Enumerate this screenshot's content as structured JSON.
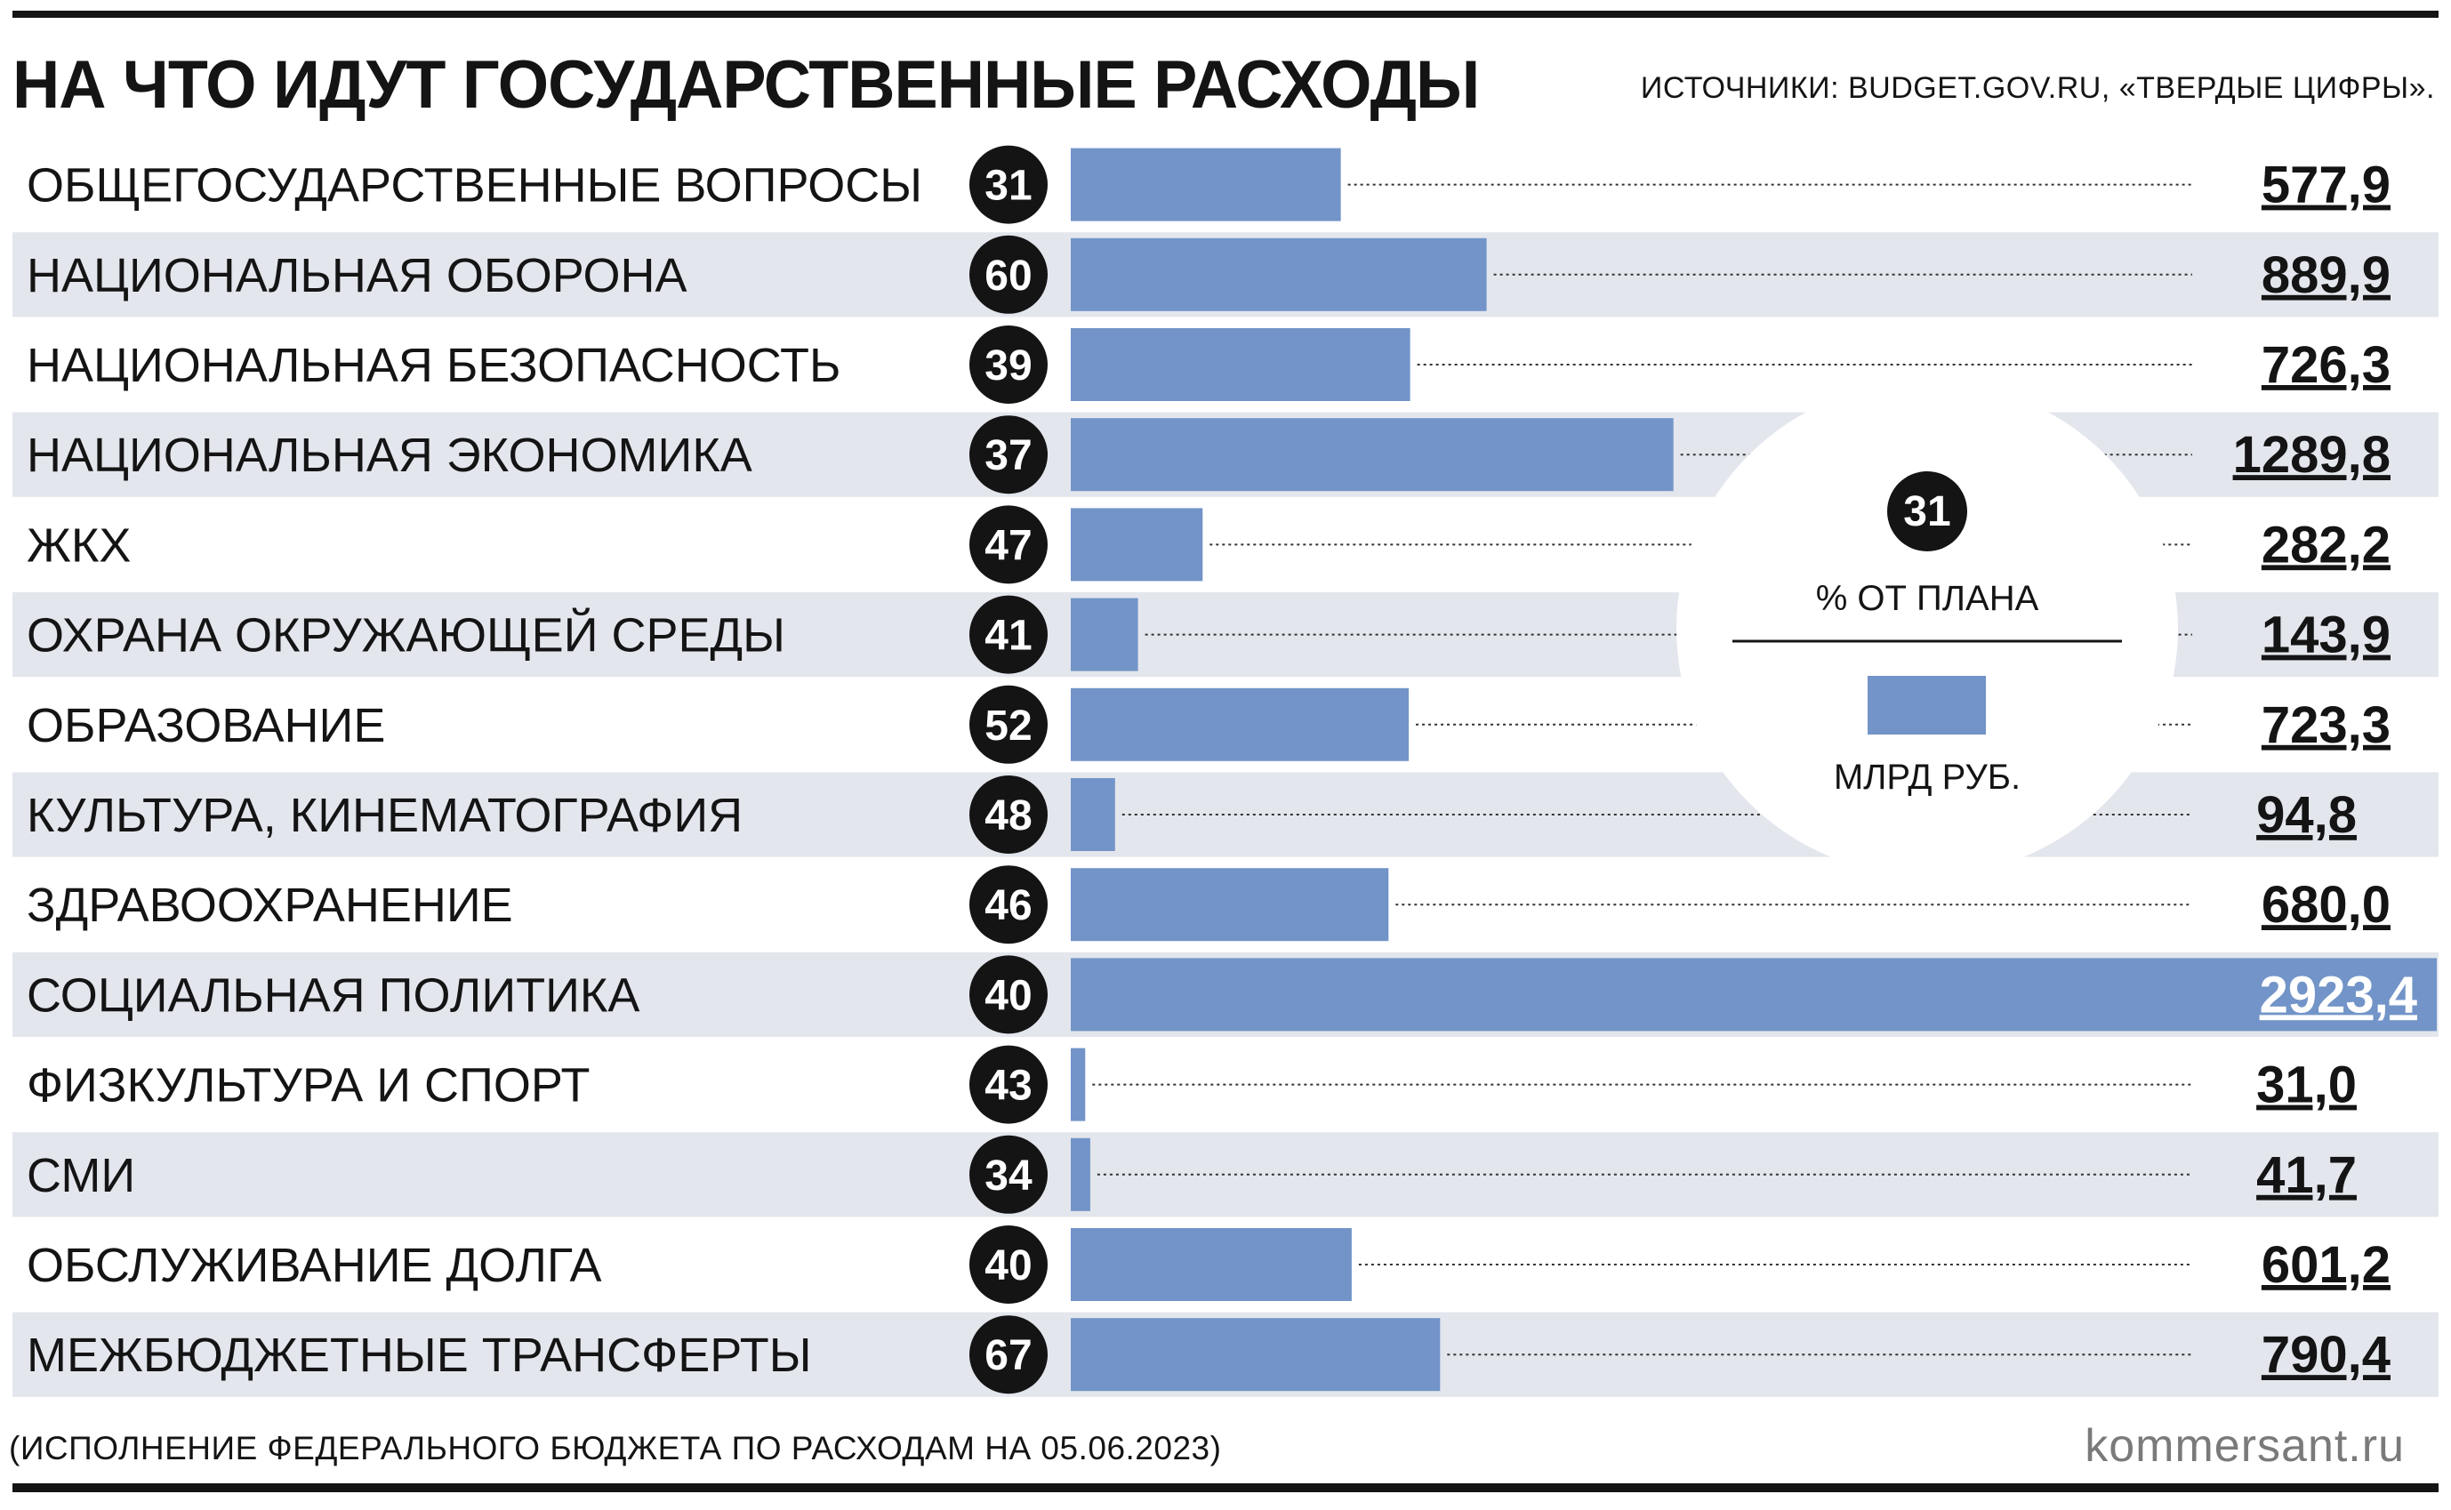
{
  "title": "НА ЧТО ИДУТ ГОСУДАРСТВЕННЫЕ РАСХОДЫ",
  "sources": "ИСТОЧНИКИ: BUDGET.GOV.RU, «ТВЕРДЫЕ ЦИФРЫ».",
  "footnote": "(ИСПОЛНЕНИЕ ФЕДЕРАЛЬНОГО БЮДЖЕТА ПО РАСХОДАМ НА 05.06.2023)",
  "brand": "kommersant.ru",
  "legend": {
    "example_percent": "31",
    "percent_label": "% ОТ ПЛАНА",
    "unit_label": "МЛРД РУБ."
  },
  "colors": {
    "bar": "#7294C8",
    "stripe": "#E3E6ED",
    "badge": "#141414",
    "text": "#141414"
  },
  "chart_data": {
    "type": "bar",
    "orientation": "horizontal",
    "value_unit": "МЛРД РУБ.",
    "percent_unit": "% ОТ ПЛАНА",
    "categories": [
      "ОБЩЕГОСУДАРСТВЕННЫЕ ВОПРОСЫ",
      "НАЦИОНАЛЬНАЯ ОБОРОНА",
      "НАЦИОНАЛЬНАЯ БЕЗОПАСНОСТЬ",
      "НАЦИОНАЛЬНАЯ ЭКОНОМИКА",
      "ЖКХ",
      "ОХРАНА ОКРУЖАЮЩЕЙ СРЕДЫ",
      "ОБРАЗОВАНИЕ",
      "КУЛЬТУРА, КИНЕМАТОГРАФИЯ",
      "ЗДРАВООХРАНЕНИЕ",
      "СОЦИАЛЬНАЯ ПОЛИТИКА",
      "ФИЗКУЛЬТУРА И СПОРТ",
      "СМИ",
      "ОБСЛУЖИВАНИЕ ДОЛГА",
      "МЕЖБЮДЖЕТНЫЕ ТРАНСФЕРТЫ"
    ],
    "values": [
      577.9,
      889.9,
      726.3,
      1289.8,
      282.2,
      143.9,
      723.3,
      94.8,
      680.0,
      2923.4,
      31.0,
      41.7,
      601.2,
      790.4
    ],
    "value_labels": [
      "577,9",
      "889,9",
      "726,3",
      "1289,8",
      "282,2",
      "143,9",
      "723,3",
      "94,8",
      "680,0",
      "2923,4",
      "31,0",
      "41,7",
      "601,2",
      "790,4"
    ],
    "percent_of_plan": [
      31,
      60,
      39,
      37,
      47,
      41,
      52,
      48,
      46,
      40,
      43,
      34,
      40,
      67
    ],
    "xlim": [
      0,
      2923.4
    ],
    "grid": false,
    "legend_position": "right-center"
  }
}
